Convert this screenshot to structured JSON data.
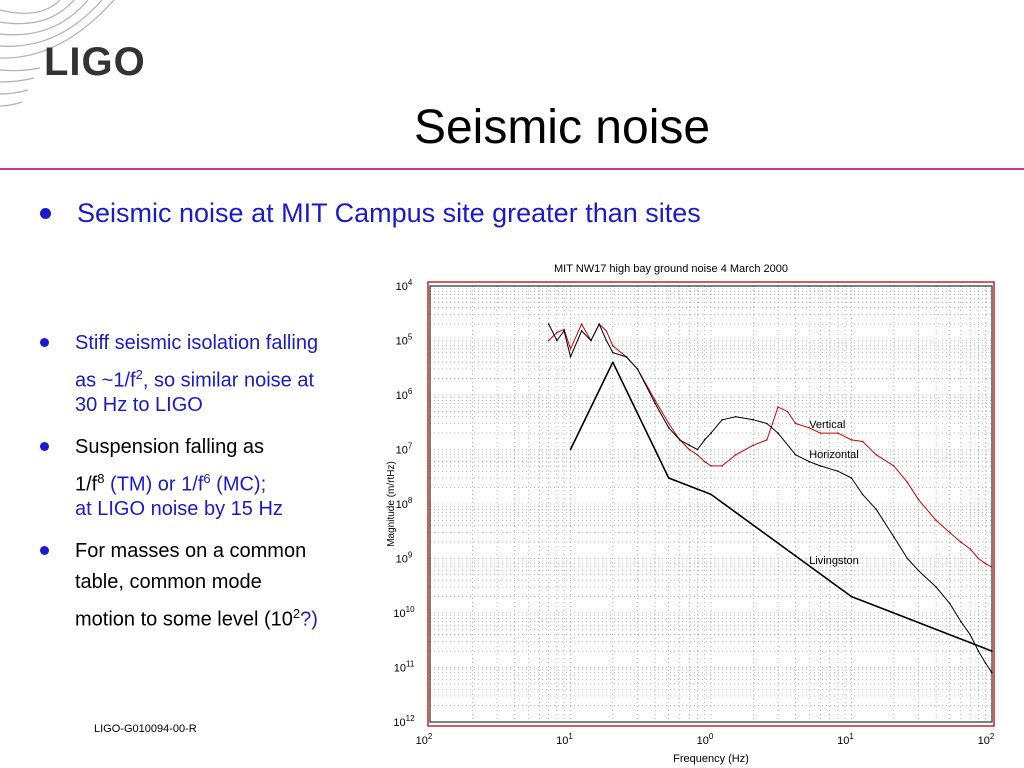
{
  "logo": {
    "text": "LIGO"
  },
  "title": "Seismic noise",
  "main_bullet": "Seismic noise at MIT Campus site greater than sites",
  "bullets": [
    {
      "lines": [
        [
          {
            "t": "Stiff seismic isolation falling",
            "c": "blue"
          }
        ],
        [
          {
            "t": "as ~1/f",
            "c": "blue"
          },
          {
            "t": "2",
            "c": "blue",
            "sup": true
          },
          {
            "t": ", so similar noise at",
            "c": "blue"
          }
        ],
        [
          {
            "t": "30 Hz to LIGO",
            "c": "blue"
          }
        ]
      ]
    },
    {
      "lines": [
        [
          {
            "t": "Suspension falling as",
            "c": "black"
          }
        ],
        [
          {
            "t": "1/f",
            "c": "black"
          },
          {
            "t": "8",
            "c": "black",
            "sup": true
          },
          {
            "t": " (TM) or 1/f",
            "c": "blue"
          },
          {
            "t": "6",
            "c": "blue",
            "sup": true
          },
          {
            "t": " (MC);",
            "c": "blue"
          }
        ],
        [
          {
            "t": "at LIGO noise by 15 Hz",
            "c": "blue"
          }
        ]
      ]
    },
    {
      "lines": [
        [
          {
            "t": "For masses on a common",
            "c": "black"
          }
        ],
        [
          {
            "t": "table, common mode",
            "c": "black"
          }
        ],
        [
          {
            "t": "motion to some level (10",
            "c": "black"
          },
          {
            "t": "2",
            "c": "black",
            "sup": true
          },
          {
            "t": "?)",
            "c": "blue"
          }
        ]
      ]
    }
  ],
  "footer": "LIGO-G010094-00-R",
  "colors": {
    "accent_rule": "#c0389a",
    "bullet_blue": "#1a1acc",
    "vertical": "#cc0000",
    "frame": "#cc2222"
  },
  "chart_data": {
    "type": "line",
    "title": "MIT NW17 high bay  ground noise  4 March 2000",
    "xlabel": "Frequency (Hz)",
    "ylabel": "Magnitude (m/rtHz)",
    "xscale": "log",
    "yscale": "log",
    "xlim": [
      0.01,
      100
    ],
    "ylim": [
      1e-12,
      0.0001
    ],
    "grid": true,
    "x_ticks": [
      {
        "b": "10",
        "e": "2"
      },
      {
        "b": "10",
        "e": "1"
      },
      {
        "b": "10",
        "e": "0"
      },
      {
        "b": "10",
        "e": "1"
      },
      {
        "b": "10",
        "e": "2"
      }
    ],
    "y_ticks": [
      {
        "b": "10",
        "e": "4"
      },
      {
        "b": "10",
        "e": "5"
      },
      {
        "b": "10",
        "e": "6"
      },
      {
        "b": "10",
        "e": "7"
      },
      {
        "b": "10",
        "e": "8"
      },
      {
        "b": "10",
        "e": "9"
      },
      {
        "b": "10",
        "e": "10"
      },
      {
        "b": "10",
        "e": "11"
      },
      {
        "b": "10",
        "e": "12"
      }
    ],
    "annotations": [
      {
        "text": "Vertical",
        "x": 5,
        "y": 2.5e-07
      },
      {
        "text": "Horizontal",
        "x": 5,
        "y": 7e-08
      },
      {
        "text": "Livingston",
        "x": 5,
        "y": 8e-10
      }
    ],
    "series": [
      {
        "name": "Vertical",
        "color": "#cc0000",
        "x": [
          0.07,
          0.08,
          0.09,
          0.1,
          0.12,
          0.14,
          0.16,
          0.18,
          0.2,
          0.25,
          0.3,
          0.4,
          0.5,
          0.6,
          0.7,
          0.8,
          0.9,
          1,
          1.2,
          1.5,
          2,
          2.5,
          3,
          3.5,
          4,
          5,
          6,
          8,
          10,
          12,
          15,
          20,
          25,
          30,
          40,
          50,
          60,
          70,
          80,
          90,
          100
        ],
        "y": [
          1e-05,
          1.4e-05,
          1.6e-05,
          7e-06,
          2e-05,
          1e-05,
          2e-05,
          1.5e-05,
          8e-06,
          5e-06,
          3e-06,
          8e-07,
          3e-07,
          1.5e-07,
          1e-07,
          8e-08,
          6e-08,
          5e-08,
          5e-08,
          8e-08,
          1.2e-07,
          1.5e-07,
          6e-07,
          5e-07,
          3e-07,
          2.5e-07,
          2e-07,
          2e-07,
          1.5e-07,
          1.4e-07,
          8e-08,
          5e-08,
          2.5e-08,
          1.2e-08,
          5e-09,
          3e-09,
          2e-09,
          1.5e-09,
          1e-09,
          8e-10,
          7e-10
        ]
      },
      {
        "name": "Horizontal",
        "color": "#000000",
        "x": [
          0.07,
          0.08,
          0.09,
          0.1,
          0.12,
          0.14,
          0.16,
          0.18,
          0.2,
          0.25,
          0.3,
          0.4,
          0.5,
          0.6,
          0.7,
          0.8,
          0.9,
          1,
          1.2,
          1.5,
          2,
          2.5,
          3,
          4,
          5,
          6,
          8,
          10,
          12,
          15,
          20,
          25,
          30,
          40,
          50,
          60,
          70,
          80,
          90,
          100
        ],
        "y": [
          2e-05,
          1e-05,
          1.5e-05,
          5e-06,
          1.5e-05,
          1e-05,
          2e-05,
          1e-05,
          6e-06,
          5e-06,
          3e-06,
          7e-07,
          2.5e-07,
          1.5e-07,
          1.2e-07,
          1e-07,
          1.5e-07,
          2e-07,
          3.5e-07,
          4e-07,
          3.5e-07,
          3e-07,
          2e-07,
          8e-08,
          6e-08,
          5e-08,
          4e-08,
          3e-08,
          1.5e-08,
          8e-09,
          2.5e-09,
          1e-09,
          6e-10,
          3e-10,
          1.5e-10,
          7e-11,
          4e-11,
          2e-11,
          1.2e-11,
          8e-12
        ]
      },
      {
        "name": "Livingston",
        "color": "#000000",
        "x": [
          0.1,
          0.2,
          0.5,
          1,
          10,
          100
        ],
        "y": [
          1e-07,
          4e-06,
          3e-08,
          1.5e-08,
          2e-10,
          2e-11
        ]
      }
    ]
  }
}
